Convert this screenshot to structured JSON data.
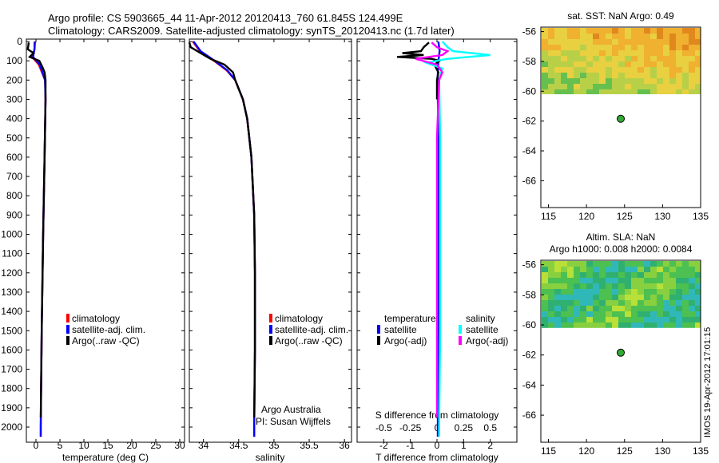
{
  "header": {
    "title1": "Argo profile: CS 5903665_44 11-Apr-2012 20120413_760 61.845S 124.499E",
    "title2": "Climatology: CARS2009. Satellite-adjusted climatology: synTS_20120413.nc (1.7d later)"
  },
  "watermark": "IMOS 19-Apr-2012 17:01:15",
  "colors": {
    "climatology": "#ff0000",
    "satellite": "#0000ff",
    "argo": "#000000",
    "sat_s": "#00ffff",
    "argo_s": "#ff00ff"
  },
  "chart_data": [
    {
      "id": "temperature",
      "type": "line",
      "xlabel": "temperature (deg C)",
      "xlim": [
        -2,
        31
      ],
      "xticks": [
        "0",
        "5",
        "10",
        "15",
        "20",
        "25",
        "30"
      ],
      "xtick_values": [
        0,
        5,
        10,
        15,
        20,
        25,
        30
      ],
      "ylim": [
        0,
        2070
      ],
      "yticks": [
        "0",
        "100",
        "200",
        "300",
        "400",
        "500",
        "600",
        "700",
        "800",
        "900",
        "1000",
        "1100",
        "1200",
        "1300",
        "1400",
        "1500",
        "1600",
        "1700",
        "1800",
        "1900",
        "2000"
      ],
      "ytick_values": [
        0,
        100,
        200,
        300,
        400,
        500,
        600,
        700,
        800,
        900,
        1000,
        1100,
        1200,
        1300,
        1400,
        1500,
        1600,
        1700,
        1800,
        1900,
        2000
      ],
      "legend": [
        "climatology",
        "satellite-adj. clim.",
        "Argo(..raw -QC)"
      ],
      "series": [
        {
          "name": "climatology",
          "color": "#ff0000",
          "depth": [
            0,
            40,
            80,
            120,
            200,
            300,
            600,
            1000,
            1500,
            2000,
            2050
          ],
          "values": [
            -0.3,
            -0.3,
            -0.8,
            0.6,
            1.9,
            2.0,
            1.8,
            1.5,
            1.2,
            1.0,
            1.0
          ]
        },
        {
          "name": "satellite-adj. clim.",
          "color": "#0000ff",
          "depth": [
            0,
            40,
            80,
            120,
            200,
            300,
            600,
            1000,
            1500,
            2000,
            2050
          ],
          "values": [
            -0.2,
            -0.3,
            -0.6,
            0.8,
            1.9,
            2.0,
            1.8,
            1.5,
            1.2,
            1.0,
            1.0
          ]
        },
        {
          "name": "Argo(..raw -QC)",
          "color": "#000000",
          "depth": [
            5,
            40,
            60,
            80,
            100,
            130,
            160,
            200,
            300,
            600,
            1000,
            1500,
            1950
          ],
          "values": [
            -1.5,
            -1.7,
            -0.5,
            -1.3,
            0.7,
            1.3,
            1.8,
            2.0,
            2.0,
            1.8,
            1.5,
            1.2,
            1.0
          ]
        }
      ]
    },
    {
      "id": "salinity",
      "type": "line",
      "xlabel": "salinity",
      "xlim": [
        33.8,
        36.1
      ],
      "xticks": [
        "34",
        "34.5",
        "35",
        "35.5",
        "36"
      ],
      "xtick_values": [
        34,
        34.5,
        35,
        35.5,
        36
      ],
      "ylim": [
        0,
        2070
      ],
      "legend": [
        "climatology",
        "satellite-adj. clim.",
        "Argo(..raw -QC)"
      ],
      "credit1": "Argo Australia",
      "credit2": "PI: Susan Wijffels",
      "series": [
        {
          "name": "climatology",
          "color": "#ff0000",
          "depth": [
            0,
            50,
            100,
            150,
            200,
            300,
            400,
            600,
            900,
            1200,
            1600,
            2000,
            2050
          ],
          "values": [
            33.85,
            33.95,
            34.15,
            34.33,
            34.45,
            34.56,
            34.62,
            34.68,
            34.72,
            34.73,
            34.73,
            34.72,
            34.72
          ]
        },
        {
          "name": "satellite-adj. clim.",
          "color": "#0000ff",
          "depth": [
            0,
            50,
            100,
            150,
            200,
            300,
            400,
            600,
            900,
            1200,
            1600,
            2000,
            2050
          ],
          "values": [
            33.86,
            33.96,
            34.16,
            34.34,
            34.45,
            34.56,
            34.62,
            34.68,
            34.72,
            34.73,
            34.73,
            34.72,
            34.72
          ]
        },
        {
          "name": "Argo(..raw -QC)",
          "color": "#000000",
          "depth": [
            5,
            30,
            60,
            90,
            120,
            160,
            200,
            300,
            400,
            600,
            900,
            1200,
            1600,
            1950
          ],
          "values": [
            33.8,
            33.82,
            33.96,
            34.1,
            34.3,
            34.42,
            34.45,
            34.56,
            34.62,
            34.68,
            34.72,
            34.73,
            34.73,
            34.72
          ]
        }
      ]
    },
    {
      "id": "difference",
      "type": "line",
      "xlabel": "T difference from climatology",
      "toplabel": "S difference from climatology",
      "xlim": [
        -3,
        3
      ],
      "xticks": [
        "-2",
        "-1",
        "0",
        "1",
        "2"
      ],
      "xtick_values": [
        -2,
        -1,
        0,
        1,
        2
      ],
      "sticks": [
        "-0.5",
        "-0.25",
        "0",
        "0.25",
        "0.5"
      ],
      "stick_values": [
        -0.5,
        -0.25,
        0,
        0.25,
        0.5
      ],
      "ylim": [
        0,
        2070
      ],
      "legend_t_title": "temperature",
      "legend_s_title": "salinity",
      "legend_t": [
        "satellite",
        "Argo(-adj)"
      ],
      "legend_s": [
        "satellite",
        "Argo(-adj)"
      ],
      "series": [
        {
          "name": "T satellite",
          "color": "#0000ff",
          "depth": [
            0,
            50,
            100,
            200,
            500,
            1000,
            1500,
            2000,
            2050
          ],
          "values": [
            0.05,
            0.1,
            0.05,
            0.02,
            0.05,
            0.05,
            0.05,
            0.03,
            0.03
          ]
        },
        {
          "name": "T Argo(-adj)",
          "color": "#000000",
          "depth": [
            5,
            30,
            50,
            60,
            70,
            80,
            90,
            100,
            120,
            160,
            200,
            300
          ],
          "values": [
            -0.3,
            -0.5,
            -0.6,
            -1.3,
            -0.5,
            -1.5,
            -0.2,
            0.1,
            -0.1,
            0.05,
            0.0,
            0.0
          ]
        },
        {
          "name": "S satellite",
          "color": "#00ffff",
          "depth": [
            0,
            30,
            50,
            70,
            90,
            110,
            140,
            200,
            500,
            1000,
            1500,
            2000,
            2050
          ],
          "values": [
            0.05,
            0.1,
            0.15,
            0.5,
            0.1,
            -0.1,
            0.05,
            0.02,
            0.03,
            0.03,
            0.03,
            0.02,
            0.02
          ]
        },
        {
          "name": "S Argo(-adj)",
          "color": "#ff00ff",
          "depth": [
            5,
            30,
            50,
            70,
            90,
            120,
            160,
            200,
            500,
            1000,
            1500,
            1950
          ],
          "values": [
            -0.05,
            0.0,
            0.1,
            0.05,
            -0.2,
            0.0,
            0.05,
            0.02,
            0.0,
            0.0,
            0.0,
            0.0
          ]
        }
      ]
    },
    {
      "id": "sst-map",
      "type": "heatmap",
      "title": "sat. SST: NaN Argo: 0.49",
      "xlim": [
        114,
        135
      ],
      "ylim": [
        -67.8,
        -55.7
      ],
      "xticks": [
        "115",
        "120",
        "125",
        "130",
        "135"
      ],
      "xtick_values": [
        115,
        120,
        125,
        130,
        135
      ],
      "yticks": [
        "-56",
        "-58",
        "-60",
        "-62",
        "-64",
        "-66"
      ],
      "ytick_values": [
        -56,
        -58,
        -60,
        -62,
        -64,
        -66
      ],
      "data_lat_min": -60.2,
      "float_lon": 124.499,
      "float_lat": -61.845
    },
    {
      "id": "sla-map",
      "type": "heatmap",
      "title1": "Altim. SLA: NaN",
      "title2": "Argo h1000: 0.008 h2000: 0.0084",
      "xlim": [
        114,
        135
      ],
      "ylim": [
        -67.8,
        -55.7
      ],
      "xticks": [
        "115",
        "120",
        "125",
        "130",
        "135"
      ],
      "xtick_values": [
        115,
        120,
        125,
        130,
        135
      ],
      "yticks": [
        "-56",
        "-58",
        "-60",
        "-62",
        "-64",
        "-66"
      ],
      "ytick_values": [
        -56,
        -58,
        -60,
        -62,
        -64,
        -66
      ],
      "data_lat_min": -60.2,
      "float_lon": 124.499,
      "float_lat": -61.845
    }
  ]
}
